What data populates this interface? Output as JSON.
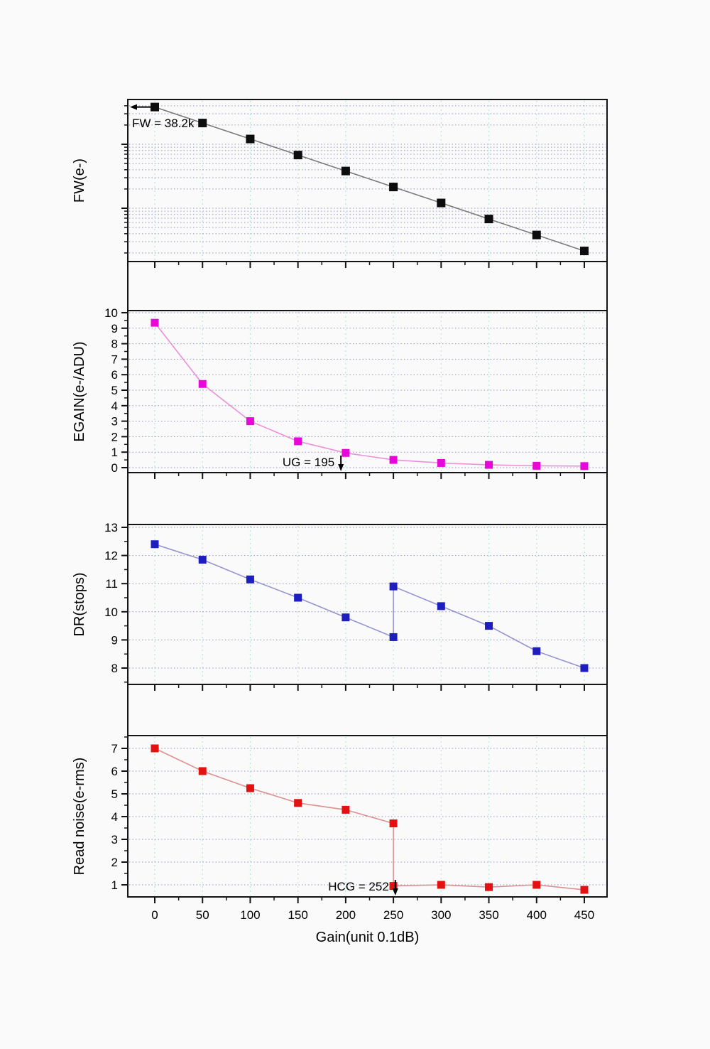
{
  "figure": {
    "xlabel": "Gain(unit 0.1dB)",
    "xtick_labels": [
      "0",
      "50",
      "100",
      "150",
      "200",
      "250",
      "300",
      "350",
      "400",
      "450"
    ],
    "colors": {
      "axis": "#141414",
      "h_grid": "#9494c0",
      "v_grid": "#b2e7de",
      "fw_marker": "#0d0d0d",
      "fw_line": "#7a7a7a",
      "egain_marker": "#e607d8",
      "egain_line": "#eb8fd9",
      "dr_marker": "#1d1dc0",
      "dr_line": "#9494d2",
      "rn_marker": "#e31111",
      "rn_line": "#dc9090"
    }
  },
  "chart_data": [
    {
      "type": "line",
      "id": "fw",
      "ylabel": "FW(e-)",
      "yscale": "log",
      "ylim": [
        150,
        50000
      ],
      "ytick_labels": [],
      "x": [
        0,
        50,
        100,
        150,
        200,
        250,
        300,
        350,
        400,
        450
      ],
      "values": [
        38200,
        21500,
        12100,
        6790,
        3820,
        2150,
        1210,
        679,
        382,
        215
      ],
      "annotation": {
        "text": "FW = 38.2k",
        "arrow": "left-at-first-point"
      }
    },
    {
      "type": "line",
      "id": "egain",
      "ylabel": "EGAIN(e-/ADU)",
      "yscale": "linear",
      "ylim": [
        -0.2,
        10.2
      ],
      "ytick_labels": [
        "0",
        "1",
        "2",
        "3",
        "4",
        "5",
        "6",
        "7",
        "8",
        "9",
        "10"
      ],
      "x": [
        0,
        50,
        100,
        150,
        200,
        250,
        300,
        350,
        400,
        450
      ],
      "values": [
        9.35,
        5.4,
        3.0,
        1.7,
        0.95,
        0.5,
        0.3,
        0.18,
        0.12,
        0.1
      ],
      "annotation": {
        "text": "UG = 195",
        "arrow": "down",
        "arrow_at_gain": 195
      }
    },
    {
      "type": "line",
      "id": "dr",
      "ylabel": "DR(stops)",
      "yscale": "linear",
      "ylim": [
        7.4,
        13.1
      ],
      "ytick_labels": [
        "8",
        "9",
        "10",
        "11",
        "12",
        "13"
      ],
      "x": [
        0,
        50,
        100,
        150,
        200,
        250,
        250,
        300,
        350,
        400,
        450
      ],
      "values": [
        12.4,
        11.85,
        11.15,
        10.5,
        9.8,
        9.1,
        10.9,
        10.2,
        9.5,
        8.6,
        8.0
      ],
      "note": "two points at gain 250: HCG-to-LCG transition creates vertical jump",
      "annotation": null
    },
    {
      "type": "line",
      "id": "rn",
      "ylabel": "Read noise(e-rms)",
      "yscale": "linear",
      "ylim": [
        0.45,
        7.55
      ],
      "ytick_labels": [
        "1",
        "2",
        "3",
        "4",
        "5",
        "6",
        "7"
      ],
      "x": [
        0,
        50,
        100,
        150,
        200,
        250,
        250,
        300,
        350,
        400,
        450
      ],
      "values": [
        7.0,
        6.0,
        5.25,
        4.6,
        4.3,
        3.7,
        0.95,
        1.0,
        0.9,
        1.0,
        0.78
      ],
      "note": "two points at gain 250: noise drops at HCG/LCG switch",
      "annotation": {
        "text": "HCG = 252",
        "arrow": "down",
        "arrow_at_gain": 252
      }
    }
  ]
}
